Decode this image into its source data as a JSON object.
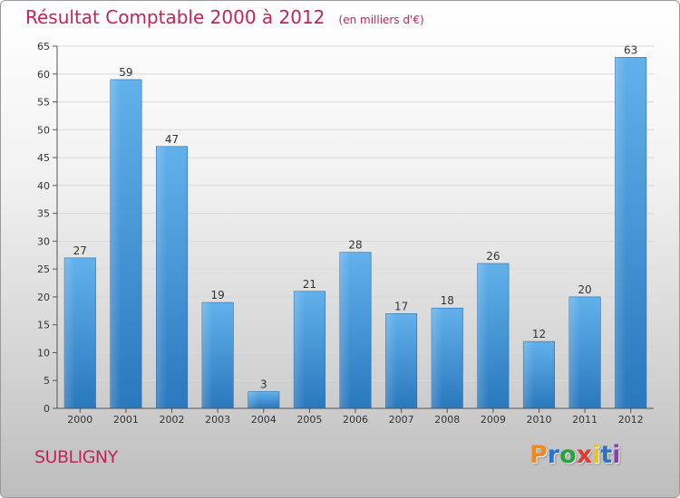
{
  "title": "Résultat Comptable 2000 à 2012",
  "unit": "(en milliers d'€)",
  "commune": "SUBLIGNY",
  "logo": {
    "letters": [
      "P",
      "r",
      "o",
      "x",
      "i",
      "t",
      "i"
    ],
    "colors": [
      "#f08a1c",
      "#2e6fcf",
      "#2aa33d",
      "#e23a2f",
      "#f2c21b",
      "#2e6fcf",
      "#8c3fb3"
    ]
  },
  "colors": {
    "bar": "#3f96d9",
    "bar_light": "#66b6ee",
    "bar_dark": "#2a72b3",
    "title": "#c0255a"
  },
  "chart_data": {
    "type": "bar",
    "categories": [
      "2000",
      "2001",
      "2002",
      "2003",
      "2004",
      "2005",
      "2006",
      "2007",
      "2008",
      "2009",
      "2010",
      "2011",
      "2012"
    ],
    "values": [
      27,
      59,
      47,
      19,
      3,
      21,
      28,
      17,
      18,
      26,
      12,
      20,
      63
    ],
    "data_labels": [
      "27",
      "59",
      "47",
      "19",
      "3",
      "21",
      "28",
      "17",
      "18",
      "26",
      "12",
      "20",
      "63"
    ],
    "ylim": [
      0,
      65
    ],
    "yticks": [
      0,
      5,
      10,
      15,
      20,
      25,
      30,
      35,
      40,
      45,
      50,
      55,
      60,
      65
    ],
    "grid": true
  }
}
